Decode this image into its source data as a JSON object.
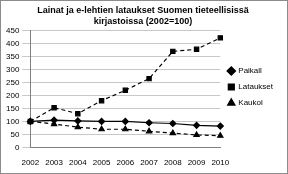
{
  "chart_data": {
    "type": "line",
    "title": [
      "Lainat ja e-lehtien lataukset Suomen tieteellisissä",
      "kirjastoissa (2002=100)"
    ],
    "categories": [
      "2002",
      "2003",
      "2004",
      "2005",
      "2006",
      "2007",
      "2008",
      "2009",
      "2010"
    ],
    "series": [
      {
        "name": "Paikall",
        "color": "#000000",
        "marker": "diamond",
        "line_style": "solid",
        "values": [
          100,
          105,
          102,
          100,
          100,
          95,
          92,
          85,
          82
        ]
      },
      {
        "name": "Lataukset",
        "color": "#000000",
        "marker": "square",
        "line_style": "dashed",
        "values": [
          100,
          153,
          130,
          180,
          220,
          265,
          370,
          378,
          422
        ]
      },
      {
        "name": "Kaukol",
        "color": "#000000",
        "marker": "triangle",
        "line_style": "dashed",
        "values": [
          100,
          90,
          78,
          70,
          70,
          62,
          55,
          48,
          45
        ]
      }
    ],
    "ylim": [
      0,
      450
    ],
    "yticks": [
      0,
      50,
      100,
      150,
      200,
      250,
      300,
      350,
      400,
      450
    ],
    "grid": true,
    "legend": "right"
  }
}
